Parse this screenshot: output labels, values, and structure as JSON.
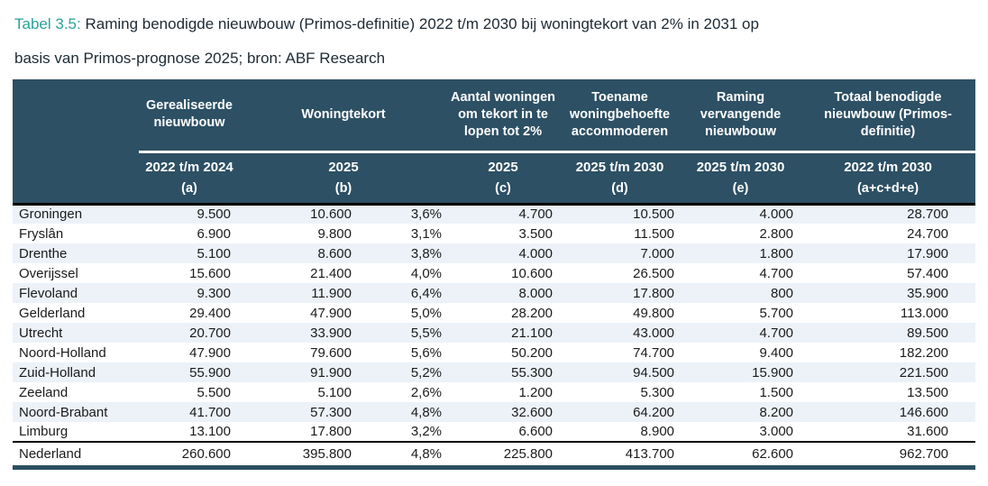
{
  "title": {
    "prefix": "Tabel 3.5:",
    "line1": "Raming benodigde nieuwbouw (Primos-definitie) 2022 t/m 2030 bij woningtekort van 2% in 2031 op",
    "line2": "basis van Primos-prognose 2025; bron: ABF Research"
  },
  "colors": {
    "header_bg": "#2d5064",
    "accent_teal": "#27a399",
    "row_stripe": "#ecf2f8",
    "rule_black": "#000000",
    "bottom_rule": "#2d5064"
  },
  "table": {
    "region_header": "",
    "columns": [
      {
        "group": "Gerealiseerde nieuwbouw",
        "period": "2022 t/m 2024",
        "letter": "(a)"
      },
      {
        "group": "Woningtekort",
        "period": "2025",
        "letter": "(b)"
      },
      {
        "group": "Aantal woningen om tekort in te lopen tot 2%",
        "period": "2025",
        "letter": "(c)"
      },
      {
        "group": "Toename woningbehoefte accommoderen",
        "period": "2025 t/m 2030",
        "letter": "(d)"
      },
      {
        "group": "Raming vervangende nieuwbouw",
        "period": "2025 t/m 2030",
        "letter": "(e)"
      },
      {
        "group": "Totaal benodigde nieuwbouw (Primos-definitie)",
        "period": "2022 t/m 2030",
        "letter": "(a+c+d+e)"
      }
    ],
    "rows": [
      {
        "region": "Groningen",
        "a": "9.500",
        "b": "10.600",
        "b_pct": "3,6%",
        "c": "4.700",
        "d": "10.500",
        "e": "4.000",
        "total": "28.700"
      },
      {
        "region": "Fryslân",
        "a": "6.900",
        "b": "9.800",
        "b_pct": "3,1%",
        "c": "3.500",
        "d": "11.500",
        "e": "2.800",
        "total": "24.700"
      },
      {
        "region": "Drenthe",
        "a": "5.100",
        "b": "8.600",
        "b_pct": "3,8%",
        "c": "4.000",
        "d": "7.000",
        "e": "1.800",
        "total": "17.900"
      },
      {
        "region": "Overijssel",
        "a": "15.600",
        "b": "21.400",
        "b_pct": "4,0%",
        "c": "10.600",
        "d": "26.500",
        "e": "4.700",
        "total": "57.400"
      },
      {
        "region": "Flevoland",
        "a": "9.300",
        "b": "11.900",
        "b_pct": "6,4%",
        "c": "8.000",
        "d": "17.800",
        "e": "800",
        "total": "35.900"
      },
      {
        "region": "Gelderland",
        "a": "29.400",
        "b": "47.900",
        "b_pct": "5,0%",
        "c": "28.200",
        "d": "49.800",
        "e": "5.700",
        "total": "113.000"
      },
      {
        "region": "Utrecht",
        "a": "20.700",
        "b": "33.900",
        "b_pct": "5,5%",
        "c": "21.100",
        "d": "43.000",
        "e": "4.700",
        "total": "89.500"
      },
      {
        "region": "Noord-Holland",
        "a": "47.900",
        "b": "79.600",
        "b_pct": "5,6%",
        "c": "50.200",
        "d": "74.700",
        "e": "9.400",
        "total": "182.200"
      },
      {
        "region": "Zuid-Holland",
        "a": "55.900",
        "b": "91.900",
        "b_pct": "5,2%",
        "c": "55.300",
        "d": "94.500",
        "e": "15.900",
        "total": "221.500"
      },
      {
        "region": "Zeeland",
        "a": "5.500",
        "b": "5.100",
        "b_pct": "2,6%",
        "c": "1.200",
        "d": "5.300",
        "e": "1.500",
        "total": "13.500"
      },
      {
        "region": "Noord-Brabant",
        "a": "41.700",
        "b": "57.300",
        "b_pct": "4,8%",
        "c": "32.600",
        "d": "64.200",
        "e": "8.200",
        "total": "146.600"
      },
      {
        "region": "Limburg",
        "a": "13.100",
        "b": "17.800",
        "b_pct": "3,2%",
        "c": "6.600",
        "d": "8.900",
        "e": "3.000",
        "total": "31.600"
      }
    ],
    "total_row": {
      "region": "Nederland",
      "a": "260.600",
      "b": "395.800",
      "b_pct": "4,8%",
      "c": "225.800",
      "d": "413.700",
      "e": "62.600",
      "total": "962.700"
    }
  }
}
